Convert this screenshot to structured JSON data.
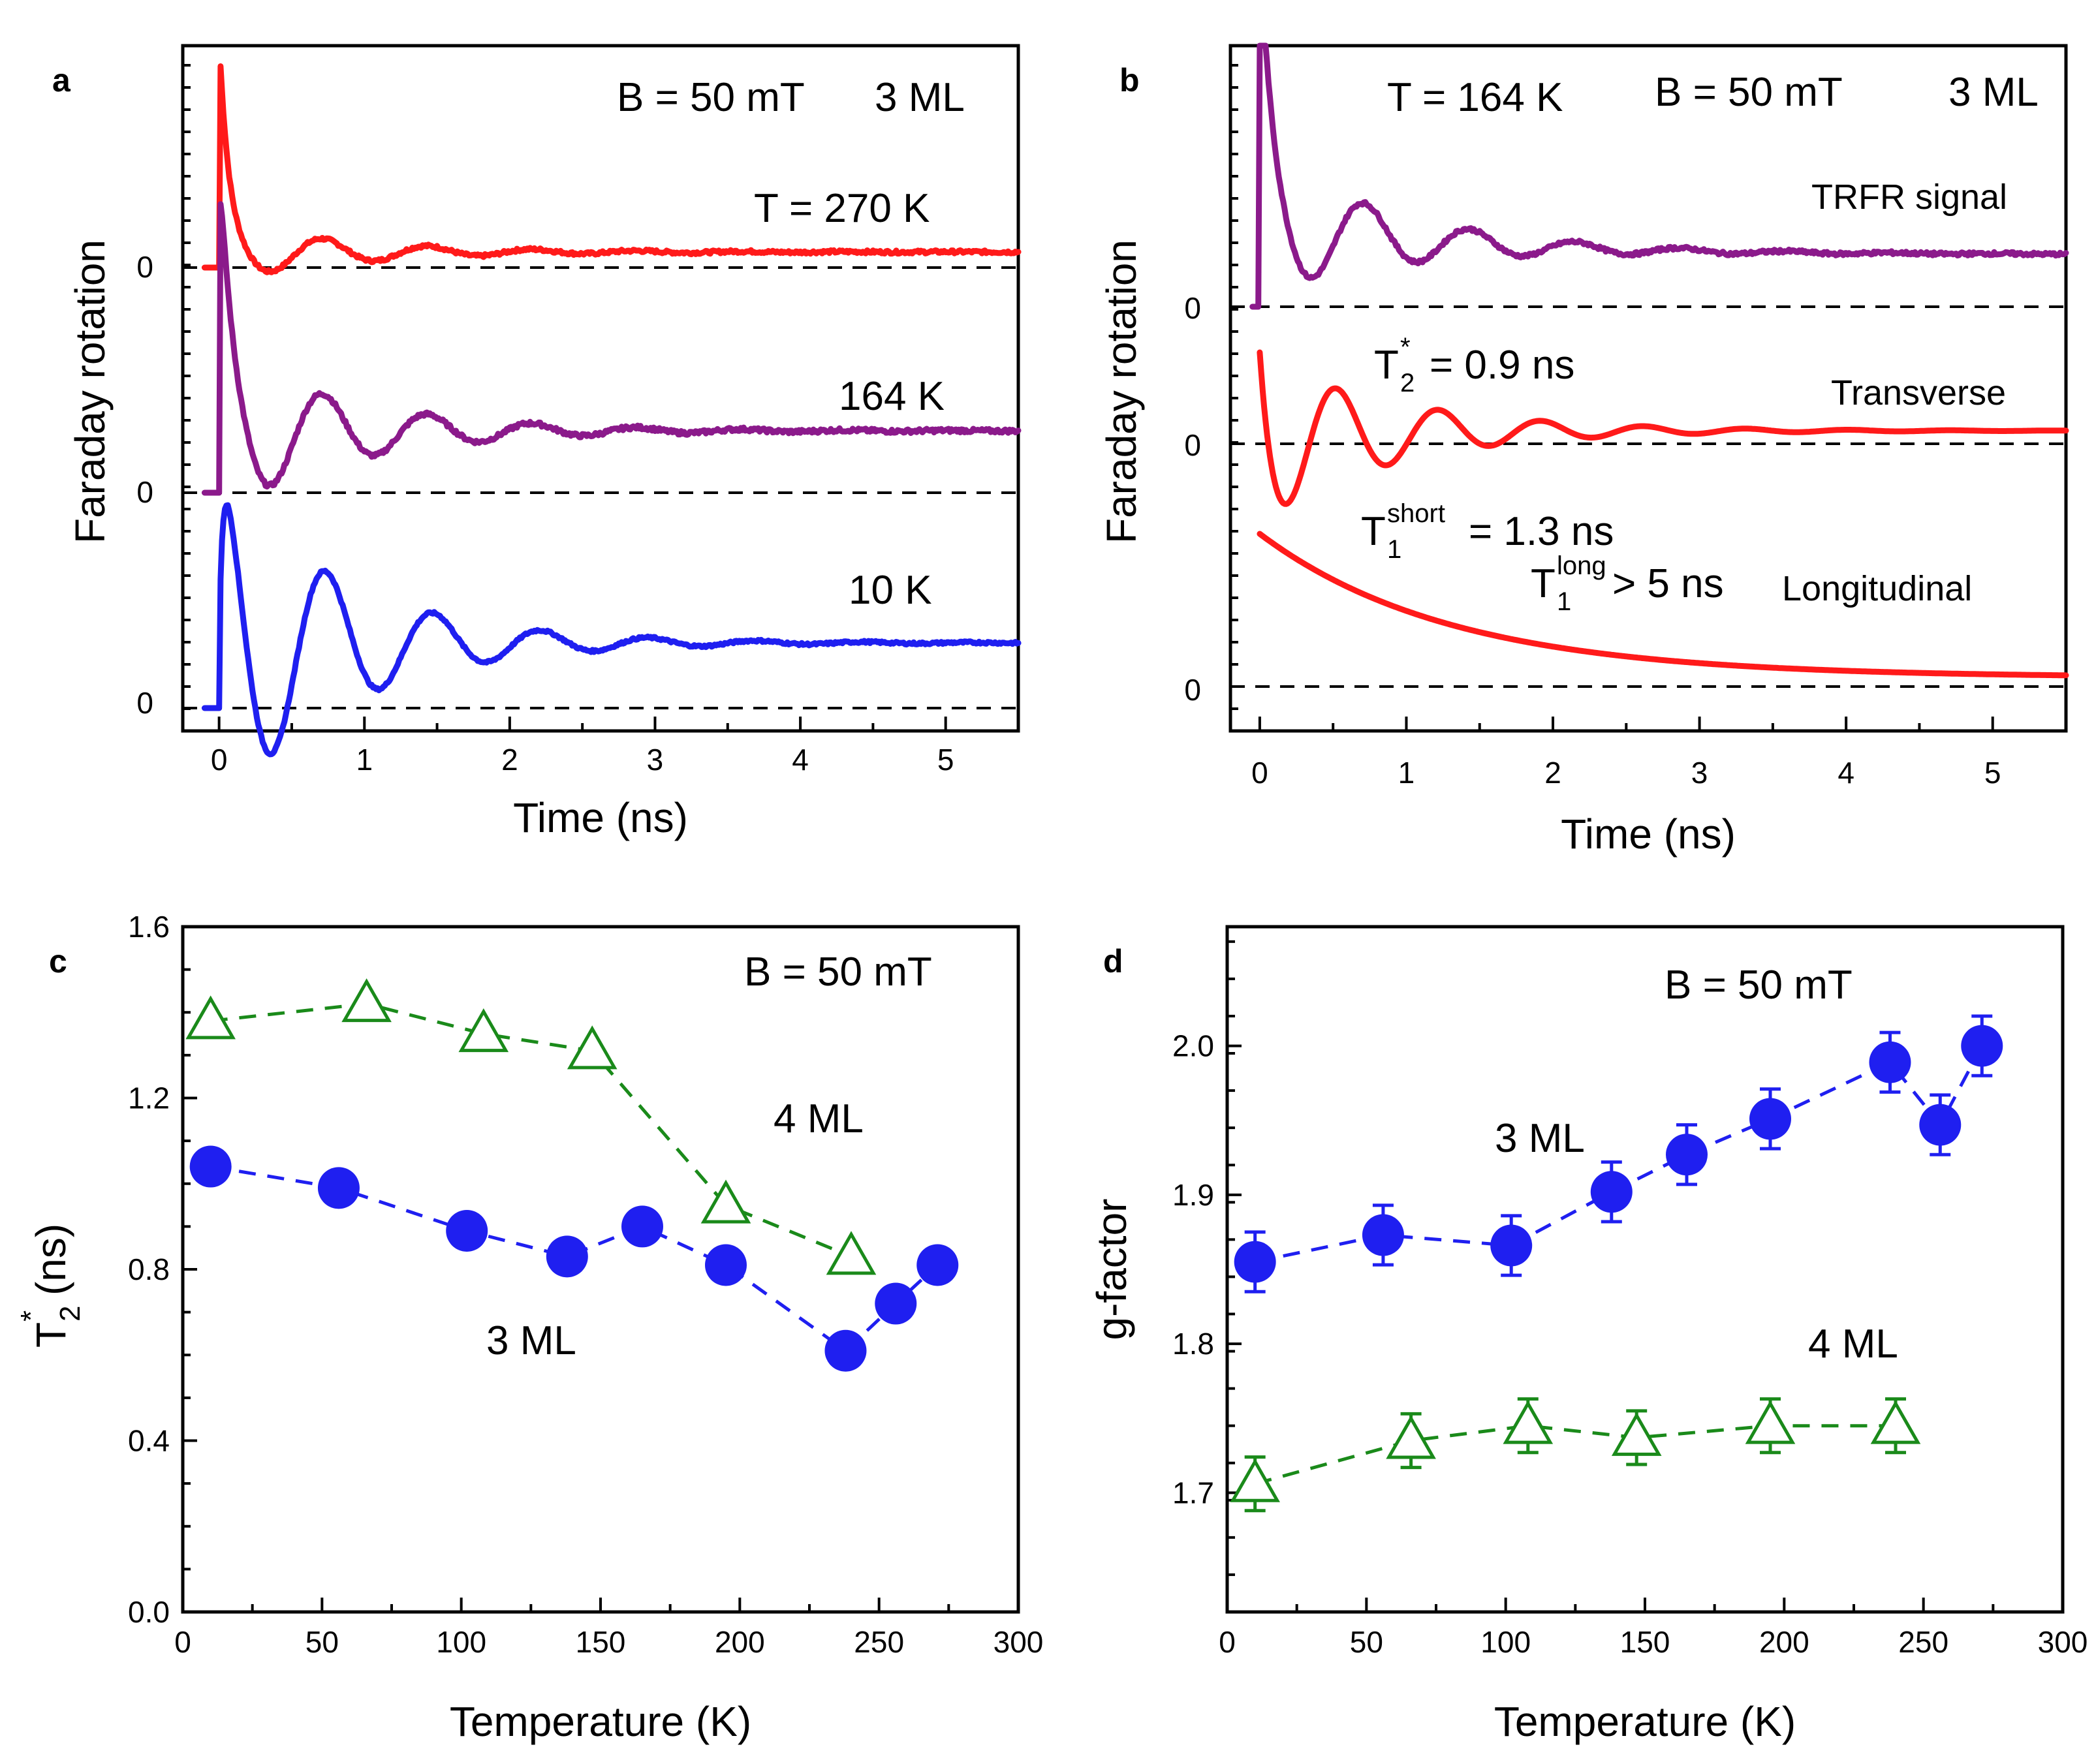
{
  "colors": {
    "red": "#ff1a1a",
    "purple": "#8b1a8b",
    "blue": "#1f1ff0",
    "green": "#1a8a1a",
    "black": "#000000"
  },
  "chart_data": [
    {
      "id": "a",
      "panel_label": "a",
      "type": "line",
      "xlabel": "Time (ns)",
      "ylabel": "Faraday rotation",
      "xlim": [
        -0.25,
        5.5
      ],
      "x_ticks": [
        "0",
        "1",
        "2",
        "3",
        "4",
        "5"
      ],
      "zero_label": "0",
      "annotations": {
        "field": "B = 50 mT",
        "thickness": "3 ML"
      },
      "series": [
        {
          "name": "T = 270 K",
          "label": "T = 270 K",
          "color": "red",
          "baseline_offset": 0.24,
          "amplitude": 0.45,
          "spike": 1.0,
          "period_ns": 0.72,
          "decay_ns": 0.9,
          "phase": 0.0,
          "noise": 0.008
        },
        {
          "name": "164 K",
          "label": "164 K",
          "color": "purple",
          "baseline_offset": 0.95,
          "amplitude": 1.25,
          "spike": 1.3,
          "period_ns": 0.72,
          "decay_ns": 0.9,
          "phase": 0.0,
          "noise": 0.01
        },
        {
          "name": "10 K",
          "label": "10 K",
          "color": "blue",
          "baseline_offset": 1.0,
          "amplitude": 2.6,
          "spike": 0.3,
          "period_ns": 0.74,
          "decay_ns": 0.85,
          "phase": 0.0,
          "noise": 0.006
        }
      ]
    },
    {
      "id": "b",
      "panel_label": "b",
      "type": "line",
      "xlabel": "Time (ns)",
      "ylabel": "Faraday rotation",
      "xlim": [
        -0.2,
        5.5
      ],
      "x_ticks": [
        "0",
        "1",
        "2",
        "3",
        "4",
        "5"
      ],
      "zero_label": "0",
      "annotations": {
        "temperature": "T = 164 K",
        "field": "B = 50 mT",
        "thickness": "3 ML"
      },
      "series": [
        {
          "name": "TRFR signal",
          "label": "TRFR signal",
          "color": "purple",
          "kind": "measured"
        },
        {
          "name": "Transverse",
          "label": "Transverse",
          "color": "red",
          "kind": "fit",
          "T2_star_ns": 0.9,
          "fit_label": "= 0.9 ns"
        },
        {
          "name": "Longitudinal",
          "label": "Longitudinal",
          "color": "red",
          "kind": "fit",
          "T1_short_ns": 1.3,
          "T1_long_ns": "> 5",
          "short_label": "= 1.3 ns",
          "long_label": "> 5 ns"
        }
      ]
    },
    {
      "id": "c",
      "panel_label": "c",
      "type": "scatter",
      "xlabel": "Temperature (K)",
      "ylabel": "T2* (ns)",
      "xlim": [
        0,
        300
      ],
      "ylim": [
        0.0,
        1.6
      ],
      "x_ticks": [
        0,
        50,
        100,
        150,
        200,
        250,
        300
      ],
      "y_ticks": [
        0.0,
        0.4,
        0.8,
        1.2,
        1.6
      ],
      "y_tick_labels": [
        "0.0",
        "0.4",
        "0.8",
        "1.2",
        "1.6"
      ],
      "annotations": {
        "field": "B = 50 mT"
      },
      "series": [
        {
          "name": "4 ML",
          "label": "4 ML",
          "color": "green",
          "marker": "open-triangle",
          "x": [
            10,
            66,
            108,
            147,
            195,
            240
          ],
          "y": [
            1.38,
            1.42,
            1.35,
            1.31,
            0.95,
            0.83
          ]
        },
        {
          "name": "3 ML",
          "label": "3 ML",
          "color": "blue",
          "marker": "filled-circle",
          "x": [
            10,
            56,
            102,
            138,
            165,
            195,
            238,
            256,
            271
          ],
          "y": [
            1.04,
            0.99,
            0.89,
            0.83,
            0.9,
            0.81,
            0.61,
            0.72,
            0.81
          ]
        }
      ]
    },
    {
      "id": "d",
      "panel_label": "d",
      "type": "scatter",
      "xlabel": "Temperature (K)",
      "ylabel": "g-factor",
      "xlim": [
        0,
        300
      ],
      "ylim": [
        1.62,
        2.08
      ],
      "x_ticks": [
        0,
        50,
        100,
        150,
        200,
        250,
        300
      ],
      "y_ticks": [
        1.7,
        1.8,
        1.9,
        2.0
      ],
      "y_tick_labels": [
        "1.7",
        "1.8",
        "1.9",
        "2.0"
      ],
      "annotations": {
        "field": "B = 50 mT"
      },
      "series": [
        {
          "name": "3 ML",
          "label": "3 ML",
          "color": "blue",
          "marker": "filled-circle",
          "x": [
            10,
            56,
            102,
            138,
            165,
            195,
            238,
            256,
            271
          ],
          "y": [
            1.855,
            1.873,
            1.866,
            1.902,
            1.927,
            1.951,
            1.989,
            1.947,
            2.0
          ],
          "err": [
            0.02,
            0.02,
            0.02,
            0.02,
            0.02,
            0.02,
            0.02,
            0.02,
            0.02
          ]
        },
        {
          "name": "4 ML",
          "label": "4 ML",
          "color": "green",
          "marker": "open-triangle",
          "x": [
            10,
            66,
            108,
            147,
            195,
            240
          ],
          "y": [
            1.706,
            1.735,
            1.745,
            1.737,
            1.745,
            1.745
          ],
          "err": [
            0.018,
            0.018,
            0.018,
            0.018,
            0.018,
            0.018
          ]
        }
      ]
    }
  ]
}
